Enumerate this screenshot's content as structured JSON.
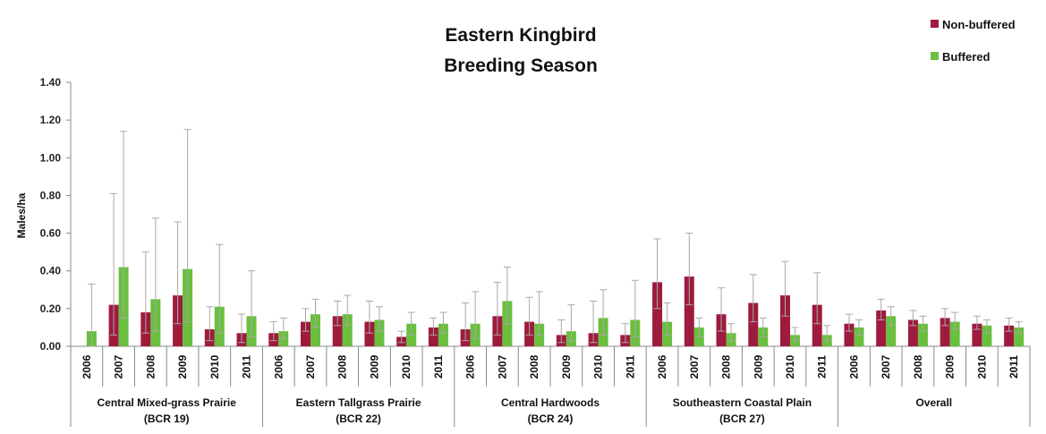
{
  "chart_data": {
    "type": "bar",
    "title": [
      "Eastern Kingbird",
      "Breeding Season"
    ],
    "ylabel": "Males/ha",
    "ylim": [
      0,
      1.4
    ],
    "yticks": [
      "0.00",
      "0.20",
      "0.40",
      "0.60",
      "0.80",
      "1.00",
      "1.20",
      "1.40"
    ],
    "legend_position": "top-right",
    "colors": {
      "Non-buffered": "#9e1b3e",
      "Buffered": "#6abf3f"
    },
    "groups": [
      {
        "name": "Central Mixed-grass Prairie",
        "code": "(BCR 19)",
        "years": [
          "2006",
          "2007",
          "2008",
          "2009",
          "2010",
          "2011"
        ],
        "nonbuffered": [
          null,
          0.22,
          0.18,
          0.27,
          0.09,
          0.07
        ],
        "nonbuffered_err": [
          null,
          [
            0.06,
            0.81
          ],
          [
            0.07,
            0.5
          ],
          [
            0.12,
            0.66
          ],
          [
            0.03,
            0.21
          ],
          [
            0.02,
            0.17
          ]
        ],
        "buffered": [
          0.08,
          0.42,
          0.25,
          0.41,
          0.21,
          0.16
        ],
        "buffered_err": [
          [
            0.0,
            0.33
          ],
          [
            0.15,
            1.14
          ],
          [
            0.08,
            0.68
          ],
          [
            0.13,
            1.15
          ],
          [
            0.07,
            0.54
          ],
          [
            0.05,
            0.4
          ]
        ]
      },
      {
        "name": "Eastern Tallgrass Prairie",
        "code": "(BCR 22)",
        "years": [
          "2006",
          "2007",
          "2008",
          "2009",
          "2010",
          "2011"
        ],
        "nonbuffered": [
          0.07,
          0.13,
          0.16,
          0.13,
          0.05,
          0.1
        ],
        "nonbuffered_err": [
          [
            0.03,
            0.13
          ],
          [
            0.08,
            0.2
          ],
          [
            0.11,
            0.24
          ],
          [
            0.07,
            0.24
          ],
          [
            0.02,
            0.08
          ],
          [
            0.06,
            0.15
          ]
        ],
        "buffered": [
          0.08,
          0.17,
          0.17,
          0.14,
          0.12,
          0.12
        ],
        "buffered_err": [
          [
            0.04,
            0.15
          ],
          [
            0.1,
            0.25
          ],
          [
            0.11,
            0.27
          ],
          [
            0.08,
            0.21
          ],
          [
            0.06,
            0.18
          ],
          [
            0.07,
            0.18
          ]
        ]
      },
      {
        "name": "Central Hardwoods",
        "code": "(BCR 24)",
        "years": [
          "2006",
          "2007",
          "2008",
          "2009",
          "2010",
          "2011"
        ],
        "nonbuffered": [
          0.09,
          0.16,
          0.13,
          0.06,
          0.07,
          0.06
        ],
        "nonbuffered_err": [
          [
            0.03,
            0.23
          ],
          [
            0.06,
            0.34
          ],
          [
            0.06,
            0.26
          ],
          [
            0.02,
            0.14
          ],
          [
            0.02,
            0.24
          ],
          [
            0.02,
            0.12
          ]
        ],
        "buffered": [
          0.12,
          0.24,
          0.12,
          0.08,
          0.15,
          0.14
        ],
        "buffered_err": [
          [
            0.04,
            0.29
          ],
          [
            0.12,
            0.42
          ],
          [
            0.06,
            0.29
          ],
          [
            0.03,
            0.22
          ],
          [
            0.06,
            0.3
          ],
          [
            0.05,
            0.35
          ]
        ]
      },
      {
        "name": "Southeastern Coastal Plain",
        "code": "(BCR 27)",
        "years": [
          "2006",
          "2007",
          "2008",
          "2009",
          "2010",
          "2011"
        ],
        "nonbuffered": [
          0.34,
          0.37,
          0.17,
          0.23,
          0.27,
          0.22
        ],
        "nonbuffered_err": [
          [
            0.2,
            0.57
          ],
          [
            0.22,
            0.6
          ],
          [
            0.08,
            0.31
          ],
          [
            0.13,
            0.38
          ],
          [
            0.16,
            0.45
          ],
          [
            0.12,
            0.39
          ]
        ],
        "buffered": [
          0.13,
          0.1,
          0.07,
          0.1,
          0.06,
          0.06
        ],
        "buffered_err": [
          [
            0.06,
            0.23
          ],
          [
            0.05,
            0.15
          ],
          [
            0.03,
            0.12
          ],
          [
            0.05,
            0.15
          ],
          [
            0.03,
            0.1
          ],
          [
            0.03,
            0.11
          ]
        ]
      },
      {
        "name": "Overall",
        "code": "",
        "years": [
          "2006",
          "2007",
          "2008",
          "2009",
          "2010",
          "2011"
        ],
        "nonbuffered": [
          0.12,
          0.19,
          0.14,
          0.15,
          0.12,
          0.11
        ],
        "nonbuffered_err": [
          [
            0.08,
            0.17
          ],
          [
            0.14,
            0.25
          ],
          [
            0.11,
            0.19
          ],
          [
            0.11,
            0.2
          ],
          [
            0.09,
            0.16
          ],
          [
            0.08,
            0.15
          ]
        ],
        "buffered": [
          0.1,
          0.16,
          0.12,
          0.13,
          0.11,
          0.1
        ],
        "buffered_err": [
          [
            0.06,
            0.14
          ],
          [
            0.11,
            0.21
          ],
          [
            0.08,
            0.16
          ],
          [
            0.09,
            0.18
          ],
          [
            0.07,
            0.14
          ],
          [
            0.07,
            0.13
          ]
        ]
      }
    ],
    "series": [
      {
        "name": "Non-buffered"
      },
      {
        "name": "Buffered"
      }
    ]
  }
}
